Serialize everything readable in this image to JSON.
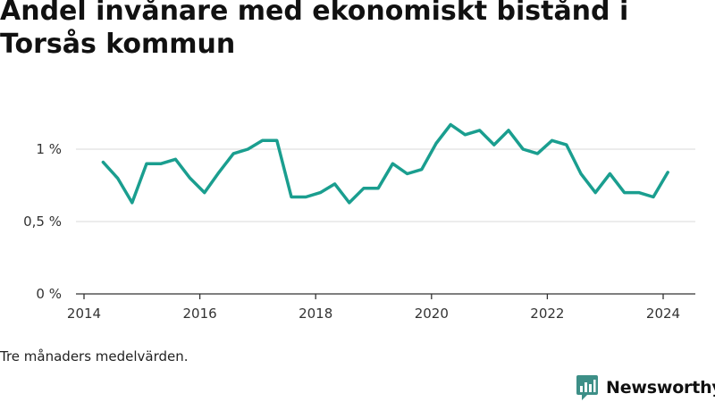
{
  "title": "Andel invånare med ekonomiskt bistånd i Torsås kommun",
  "note": "Tre månaders medelvärden.",
  "brand": {
    "name": "Newsworthy",
    "icon": "newsworthy-logo-icon"
  },
  "colors": {
    "line": "#1a9e8f",
    "grid": "#d9d9d9",
    "axis": "#333333",
    "brand": "#3d8f87"
  },
  "chart_data": {
    "type": "line",
    "title": "",
    "xlabel": "",
    "ylabel": "",
    "x_ticks": [
      "2014",
      "2016",
      "2018",
      "2020",
      "2022",
      "2024"
    ],
    "y_ticks": [
      "0 %",
      "0,5 %",
      "1 %"
    ],
    "xlim": [
      2014,
      2024.6
    ],
    "ylim": [
      0,
      1.3
    ],
    "grid": "horizontal",
    "legend": "none",
    "series": [
      {
        "x": [
          2014.33,
          2014.58,
          2014.83,
          2015.08,
          2015.33,
          2015.58,
          2015.83,
          2016.08,
          2016.33,
          2016.58,
          2016.83,
          2017.08,
          2017.33,
          2017.58,
          2017.83,
          2018.08,
          2018.33,
          2018.58,
          2018.83,
          2019.08,
          2019.33,
          2019.58,
          2019.83,
          2020.08,
          2020.33,
          2020.58,
          2020.83,
          2021.08,
          2021.33,
          2021.58,
          2021.83,
          2022.08,
          2022.33,
          2022.58,
          2022.83,
          2023.08,
          2023.33,
          2023.58,
          2023.83,
          2024.08
        ],
        "values": [
          0.91,
          0.8,
          0.63,
          0.9,
          0.9,
          0.93,
          0.8,
          0.7,
          0.84,
          0.97,
          1.0,
          1.06,
          1.06,
          0.67,
          0.67,
          0.7,
          0.76,
          0.63,
          0.73,
          0.73,
          0.9,
          0.83,
          0.86,
          1.04,
          1.17,
          1.1,
          1.13,
          1.03,
          1.13,
          1.0,
          0.97,
          1.06,
          1.03,
          0.83,
          0.7,
          0.83,
          0.7,
          0.7,
          0.67,
          0.84
        ]
      }
    ]
  }
}
